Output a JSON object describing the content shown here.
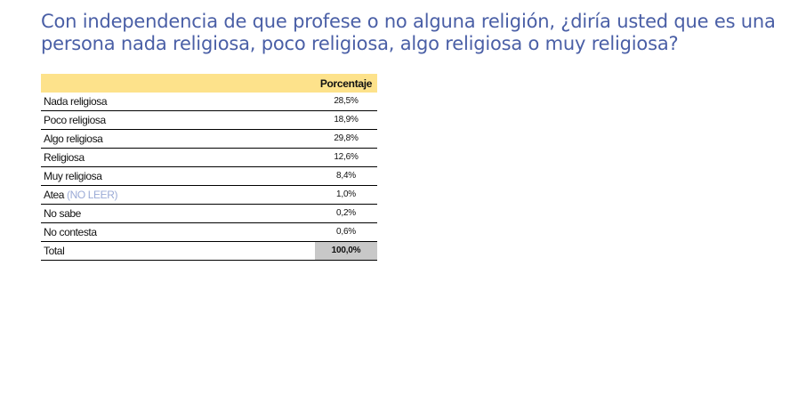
{
  "title": "Con independencia de que profese o no alguna religión, ¿diría usted que es una persona nada religiosa, poco religiosa, algo religiosa o muy religiosa?",
  "table": {
    "header": {
      "label": "",
      "value": "Porcentaje"
    },
    "rows": [
      {
        "label": "Nada religiosa",
        "note": "",
        "value": "28,5%"
      },
      {
        "label": "Poco religiosa",
        "note": "",
        "value": "18,9%"
      },
      {
        "label": "Algo religiosa",
        "note": "",
        "value": "29,8%"
      },
      {
        "label": "Religiosa",
        "note": "",
        "value": "12,6%"
      },
      {
        "label": "Muy religiosa",
        "note": "",
        "value": "8,4%"
      },
      {
        "label": "Atea",
        "note": "(NO LEER)",
        "value": "1,0%"
      },
      {
        "label": "No sabe",
        "note": "",
        "value": "0,2%"
      },
      {
        "label": "No contesta",
        "note": "",
        "value": "0,6%"
      }
    ],
    "total": {
      "label": "Total",
      "value": "100,0%"
    }
  },
  "colors": {
    "title": "#4a5fa6",
    "header_bg": "#fde28b",
    "total_bg": "#c8c8c8",
    "note": "#9aaad6"
  }
}
